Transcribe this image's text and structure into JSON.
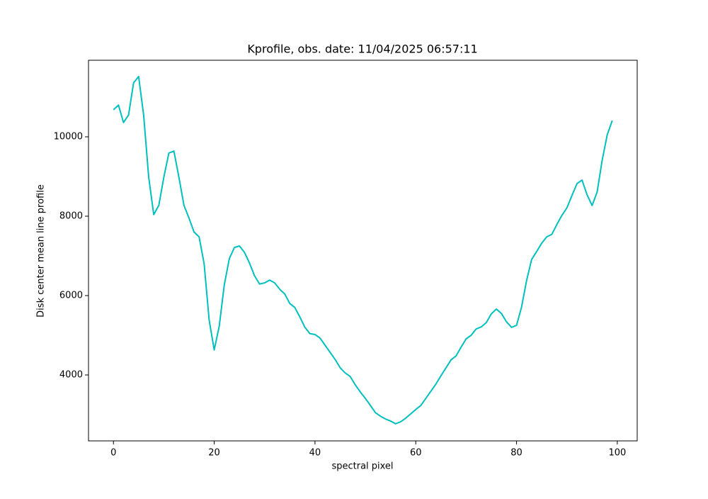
{
  "chart_data": {
    "type": "line",
    "title": "Kprofile, obs. date: 11/04/2025 06:57:11",
    "xlabel": "spectral pixel",
    "ylabel": "Disk center mean line profile",
    "color": "#00bfbf",
    "x": [
      0,
      1,
      2,
      3,
      4,
      5,
      6,
      7,
      8,
      9,
      10,
      11,
      12,
      13,
      14,
      15,
      16,
      17,
      18,
      19,
      20,
      21,
      22,
      23,
      24,
      25,
      26,
      27,
      28,
      29,
      30,
      31,
      32,
      33,
      34,
      35,
      36,
      37,
      38,
      39,
      40,
      41,
      42,
      43,
      44,
      45,
      46,
      47,
      48,
      49,
      50,
      51,
      52,
      53,
      54,
      55,
      56,
      57,
      58,
      59,
      60,
      61,
      62,
      63,
      64,
      65,
      66,
      67,
      68,
      69,
      70,
      71,
      72,
      73,
      74,
      75,
      76,
      77,
      78,
      79,
      80,
      81,
      82,
      83,
      84,
      85,
      86,
      87,
      88,
      89,
      90,
      91,
      92,
      93,
      94,
      95,
      96,
      97,
      98,
      99
    ],
    "values": [
      10680,
      10800,
      10360,
      10550,
      11360,
      11520,
      10540,
      8980,
      8040,
      8270,
      8980,
      9590,
      9640,
      8980,
      8270,
      7950,
      7600,
      7480,
      6800,
      5380,
      4630,
      5230,
      6270,
      6930,
      7210,
      7250,
      7090,
      6820,
      6500,
      6290,
      6320,
      6390,
      6320,
      6160,
      6040,
      5800,
      5700,
      5460,
      5200,
      5040,
      5020,
      4930,
      4750,
      4570,
      4390,
      4180,
      4050,
      3960,
      3750,
      3570,
      3410,
      3230,
      3050,
      2960,
      2890,
      2840,
      2770,
      2820,
      2910,
      3020,
      3130,
      3230,
      3410,
      3590,
      3770,
      3980,
      4180,
      4380,
      4480,
      4700,
      4910,
      5000,
      5160,
      5210,
      5320,
      5540,
      5660,
      5550,
      5340,
      5200,
      5250,
      5710,
      6380,
      6910,
      7110,
      7320,
      7480,
      7540,
      7790,
      8020,
      8210,
      8520,
      8820,
      8910,
      8540,
      8270,
      8610,
      9410,
      10050,
      10410
    ],
    "xlim": [
      -4.95,
      103.95
    ],
    "ylim": [
      2339,
      11929
    ],
    "xticks": [
      0,
      20,
      40,
      60,
      80,
      100
    ],
    "yticks": [
      4000,
      6000,
      8000,
      10000
    ]
  }
}
